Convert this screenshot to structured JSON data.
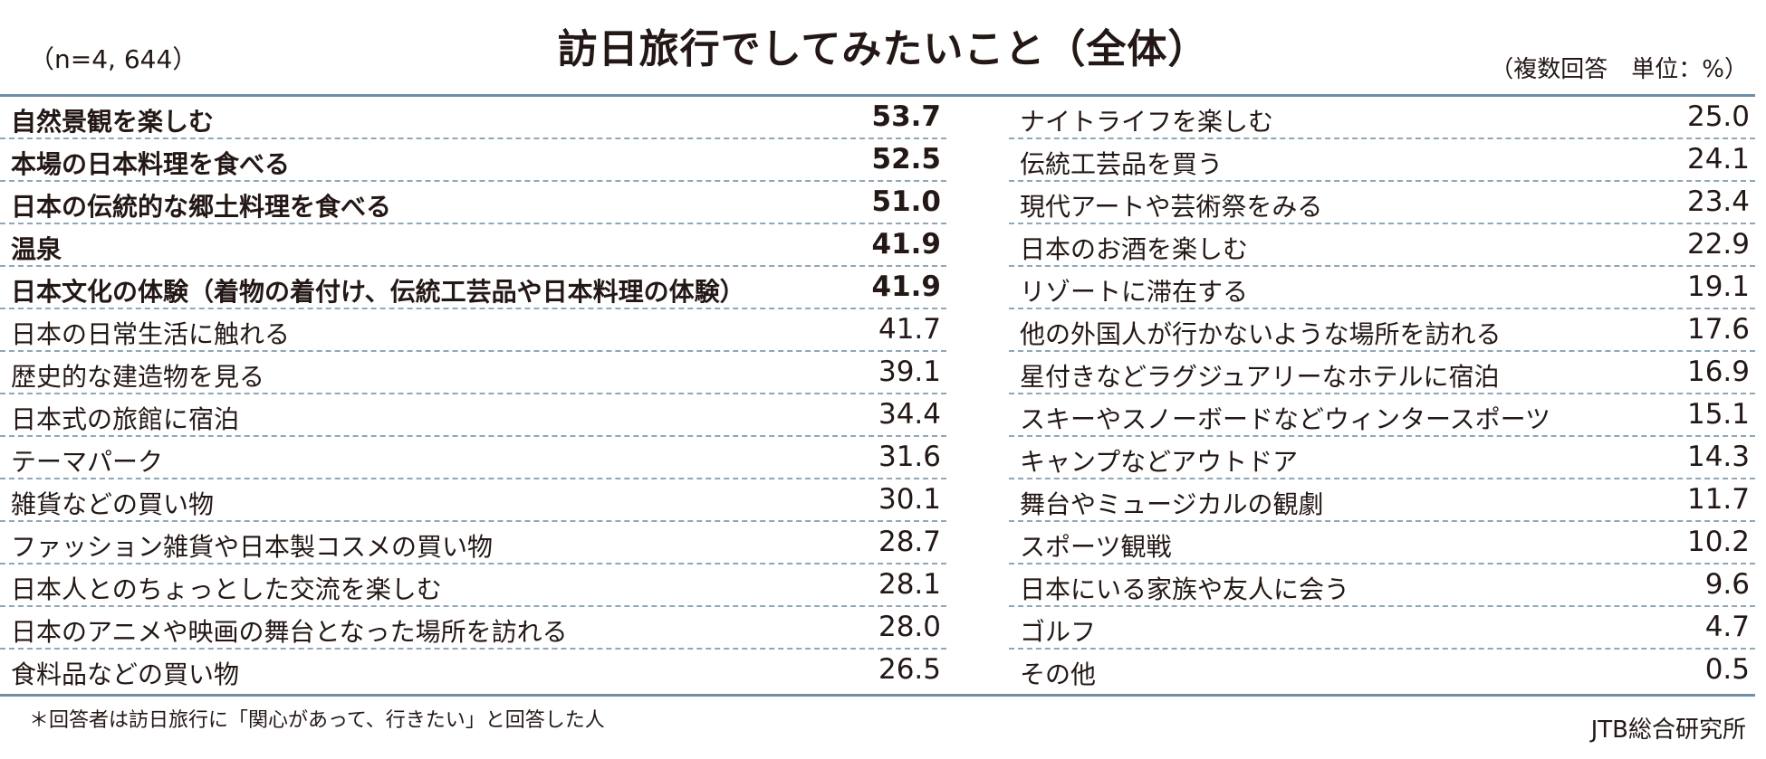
{
  "header": {
    "title": "訪日旅行でしてみたいこと（全体）",
    "sample": "（n=4, 644）",
    "unit": "（複数回答　単位：%）"
  },
  "chart_data": {
    "type": "table",
    "title": "訪日旅行でしてみたいこと（全体）",
    "left_column": [
      {
        "label": "自然景観を楽しむ",
        "value": "53.7",
        "bold": true
      },
      {
        "label": "本場の日本料理を食べる",
        "value": "52.5",
        "bold": true
      },
      {
        "label": "日本の伝統的な郷土料理を食べる",
        "value": "51.0",
        "bold": true
      },
      {
        "label": "温泉",
        "value": "41.9",
        "bold": true
      },
      {
        "label": "日本文化の体験（着物の着付け、伝統工芸品や日本料理の体験）",
        "value": "41.9",
        "bold": true
      },
      {
        "label": "日本の日常生活に触れる",
        "value": "41.7",
        "bold": false
      },
      {
        "label": "歴史的な建造物を見る",
        "value": "39.1",
        "bold": false
      },
      {
        "label": "日本式の旅館に宿泊",
        "value": "34.4",
        "bold": false
      },
      {
        "label": "テーマパーク",
        "value": "31.6",
        "bold": false
      },
      {
        "label": "雑貨などの買い物",
        "value": "30.1",
        "bold": false
      },
      {
        "label": "ファッション雑貨や日本製コスメの買い物",
        "value": "28.7",
        "bold": false
      },
      {
        "label": "日本人とのちょっとした交流を楽しむ",
        "value": "28.1",
        "bold": false
      },
      {
        "label": "日本のアニメや映画の舞台となった場所を訪れる",
        "value": "28.0",
        "bold": false
      },
      {
        "label": "食料品などの買い物",
        "value": "26.5",
        "bold": false
      }
    ],
    "right_column": [
      {
        "label": "ナイトライフを楽しむ",
        "value": "25.0",
        "bold": false
      },
      {
        "label": "伝統工芸品を買う",
        "value": "24.1",
        "bold": false
      },
      {
        "label": "現代アートや芸術祭をみる",
        "value": "23.4",
        "bold": false
      },
      {
        "label": "日本のお酒を楽しむ",
        "value": "22.9",
        "bold": false
      },
      {
        "label": "リゾートに滞在する",
        "value": "19.1",
        "bold": false
      },
      {
        "label": "他の外国人が行かないような場所を訪れる",
        "value": "17.6",
        "bold": false
      },
      {
        "label": "星付きなどラグジュアリーなホテルに宿泊",
        "value": "16.9",
        "bold": false
      },
      {
        "label": "スキーやスノーボードなどウィンタースポーツ",
        "value": "15.1",
        "bold": false
      },
      {
        "label": "キャンプなどアウトドア",
        "value": "14.3",
        "bold": false
      },
      {
        "label": "舞台やミュージカルの観劇",
        "value": "11.7",
        "bold": false
      },
      {
        "label": "スポーツ観戦",
        "value": "10.2",
        "bold": false
      },
      {
        "label": "日本にいる家族や友人に会う",
        "value": "9.6",
        "bold": false
      },
      {
        "label": "ゴルフ",
        "value": "4.7",
        "bold": false
      },
      {
        "label": "その他",
        "value": "0.5",
        "bold": false
      }
    ]
  },
  "footer": {
    "note": "＊回答者は訪日旅行に「関心があって、行きたい」と回答した人",
    "source": "JTB総合研究所"
  },
  "colors": {
    "rule": "#6f8fa4",
    "dash": "#8fa7b7",
    "text": "#231815"
  }
}
